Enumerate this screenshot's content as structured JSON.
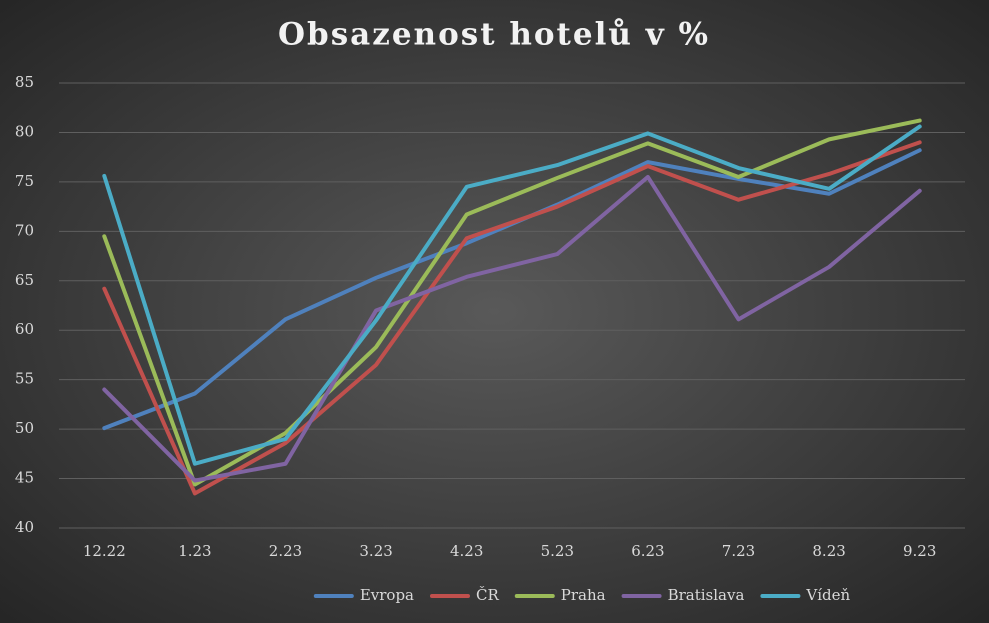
{
  "chart_data": {
    "type": "line",
    "title": "Obsazenost hotelů v %",
    "categories": [
      "12.22",
      "1.23",
      "2.23",
      "3.23",
      "4.23",
      "5.23",
      "6.23",
      "7.23",
      "8.23",
      "9.23"
    ],
    "series": [
      {
        "name": "Evropa",
        "color": "#4f81bd",
        "values": [
          50.1,
          53.6,
          61.1,
          65.3,
          68.8,
          72.7,
          77.0,
          75.3,
          73.8,
          78.2
        ]
      },
      {
        "name": "ČR",
        "color": "#c0504d",
        "values": [
          64.2,
          43.5,
          48.6,
          56.5,
          69.3,
          72.5,
          76.6,
          73.2,
          75.8,
          79.0
        ]
      },
      {
        "name": "Praha",
        "color": "#9bbb59",
        "values": [
          69.5,
          44.4,
          49.6,
          58.3,
          71.7,
          75.4,
          78.9,
          75.5,
          79.3,
          81.2
        ]
      },
      {
        "name": "Bratislava",
        "color": "#8064a2",
        "values": [
          54.0,
          44.8,
          46.5,
          62.0,
          65.4,
          67.7,
          75.5,
          61.1,
          66.4,
          74.1
        ]
      },
      {
        "name": "Vídeň",
        "color": "#4bacc6",
        "values": [
          75.6,
          46.5,
          49.0,
          61.0,
          74.5,
          76.7,
          79.9,
          76.4,
          74.3,
          80.6
        ]
      }
    ],
    "ylim": [
      40,
      85
    ],
    "yticks": [
      40,
      45,
      50,
      55,
      60,
      65,
      70,
      75,
      80,
      85
    ],
    "grid": true,
    "legend": "bottom"
  }
}
